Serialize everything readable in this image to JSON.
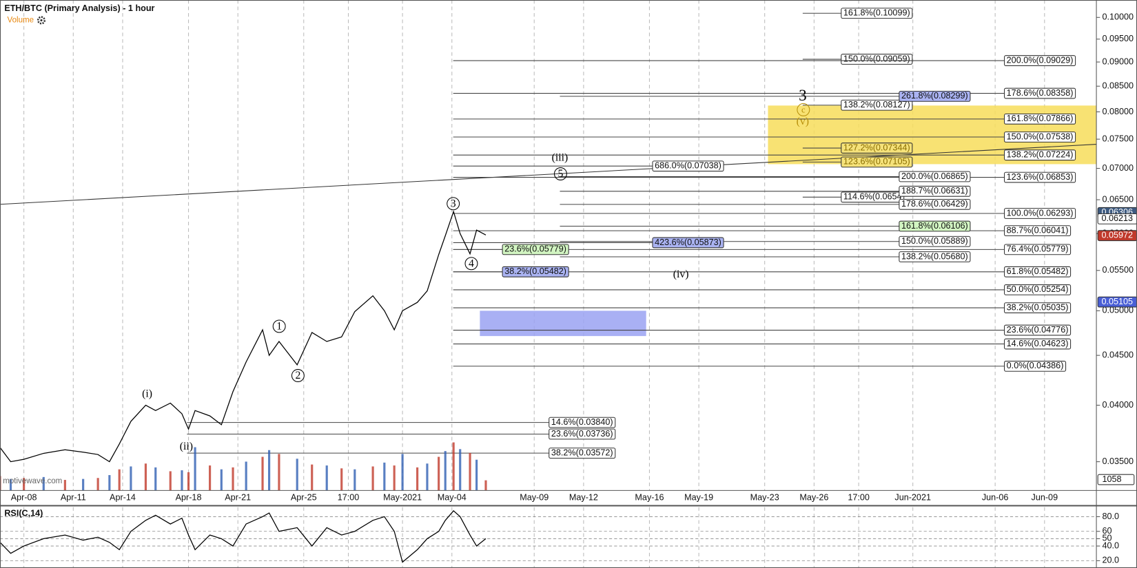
{
  "chart_data": [
    {
      "type": "line",
      "title": "ETH/BTC (Primary Analysis) - 1 hour",
      "indicator_label": "Volume",
      "watermark": "motivewave.com",
      "color": "#000000",
      "log_scale": true,
      "grid": true,
      "x": [
        96.55,
        97.2,
        98,
        99.2,
        100.5,
        101.6,
        102.5,
        103.2,
        103.8,
        104.5,
        105.4,
        106,
        106.9,
        107.6,
        108,
        108.4,
        109.3,
        110,
        110.7,
        111.5,
        112.5,
        112.9,
        113.5,
        114.6,
        115.5,
        116.4,
        117.3,
        118.1,
        119.2,
        119.9,
        120.5,
        121,
        121.9,
        122.5,
        123.2,
        123.6,
        124.1,
        124.5,
        125.1,
        125.5,
        126.06
      ],
      "values": [
        0.0362,
        0.035,
        0.0352,
        0.0357,
        0.036,
        0.0358,
        0.0356,
        0.035,
        0.0365,
        0.0385,
        0.04,
        0.0395,
        0.0402,
        0.0392,
        0.0378,
        0.0395,
        0.039,
        0.0382,
        0.0413,
        0.0443,
        0.0478,
        0.045,
        0.0465,
        0.044,
        0.0475,
        0.0465,
        0.047,
        0.0499,
        0.0518,
        0.05,
        0.0478,
        0.05,
        0.051,
        0.0524,
        0.0571,
        0.0597,
        0.0632,
        0.06,
        0.0572,
        0.0605,
        0.0598
      ],
      "xlim": [
        96.55,
        163.15
      ],
      "xticks": [
        {
          "value": 98,
          "label": "Apr-08"
        },
        {
          "value": 101,
          "label": "Apr-11"
        },
        {
          "value": 104,
          "label": "Apr-14"
        },
        {
          "value": 108,
          "label": "Apr-18"
        },
        {
          "value": 111,
          "label": "Apr-21"
        },
        {
          "value": 115,
          "label": "Apr-25"
        },
        {
          "value": 117.71,
          "label": "17:00"
        },
        {
          "value": 121,
          "label": "May-2021"
        },
        {
          "value": 124,
          "label": "May-04"
        },
        {
          "value": 129,
          "label": "May-09"
        },
        {
          "value": 132,
          "label": "May-12"
        },
        {
          "value": 136,
          "label": "May-16"
        },
        {
          "value": 139,
          "label": "May-19"
        },
        {
          "value": 143,
          "label": "May-23"
        },
        {
          "value": 146,
          "label": "May-26"
        },
        {
          "value": 148.71,
          "label": "17:00"
        },
        {
          "value": 152,
          "label": "Jun-2021"
        },
        {
          "value": 157,
          "label": "Jun-06"
        },
        {
          "value": 160,
          "label": "Jun-09"
        }
      ],
      "ylim": [
        0.0327,
        0.1042
      ],
      "yticks": [
        {
          "value": 0.035,
          "label": "0.03500"
        },
        {
          "value": 0.04,
          "label": "0.04000"
        },
        {
          "value": 0.045,
          "label": "0.04500"
        },
        {
          "value": 0.05,
          "label": "0.05000"
        },
        {
          "value": 0.055,
          "label": "0.05500"
        },
        {
          "value": 0.06,
          "label": "0.06000"
        },
        {
          "value": 0.065,
          "label": "0.06500"
        },
        {
          "value": 0.07,
          "label": "0.07000"
        },
        {
          "value": 0.075,
          "label": "0.07500"
        },
        {
          "value": 0.08,
          "label": "0.08000"
        },
        {
          "value": 0.085,
          "label": "0.08500"
        },
        {
          "value": 0.09,
          "label": "0.09000"
        },
        {
          "value": 0.095,
          "label": "0.09500"
        },
        {
          "value": 0.1,
          "label": "0.10000"
        }
      ],
      "price_markers": [
        {
          "label": "0.06306",
          "value": 0.06306,
          "color": "#3d5a80"
        },
        {
          "label": "0.06213",
          "value": 0.06213,
          "color": "#ffffff"
        },
        {
          "label": "0.05972",
          "value": 0.05972,
          "color": "#c0392b"
        },
        {
          "label": "0.05105",
          "value": 0.05105,
          "color": "#4a5fd6"
        }
      ],
      "zones": [
        {
          "from": 0.0707,
          "to": 0.0812,
          "x": [
            143.2,
            163.15
          ],
          "color": "#f7dd5a"
        },
        {
          "from": 0.0471,
          "to": 0.05,
          "x": [
            125.7,
            135.8
          ],
          "color": "#9aa2f2"
        }
      ],
      "trendline": {
        "x": [
          96.55,
          163.15
        ],
        "y": [
          0.0643,
          0.0741
        ]
      },
      "levels": [
        {
          "label": "161.8%(0.10099)",
          "value": 0.10099,
          "x": [
            145.31,
            147.65
          ],
          "box": "white"
        },
        {
          "label": "150.0%(0.09059)",
          "value": 0.09059,
          "x": [
            145.31,
            147.65
          ],
          "box": "white"
        },
        {
          "label": "138.2%(0.08127)",
          "value": 0.08127,
          "x": [
            145.31,
            147.65
          ],
          "box": "white"
        },
        {
          "label": "127.2%(0.07344)",
          "value": 0.07344,
          "x": [
            145.31,
            147.65
          ],
          "box": "yellow"
        },
        {
          "label": "123.6%(0.07105)",
          "value": 0.07105,
          "x": [
            145.31,
            147.65
          ],
          "box": "yellow"
        },
        {
          "label": "114.6%(0.0654",
          "value": 0.0654,
          "x": [
            145.31,
            147.65
          ],
          "box": "white"
        },
        {
          "label": "200.0%(0.09029)",
          "value": 0.09029,
          "x": [
            124.08,
            157.56
          ],
          "box": "white"
        },
        {
          "label": "178.6%(0.08358)",
          "value": 0.08358,
          "x": [
            124.08,
            157.56
          ],
          "box": "white"
        },
        {
          "label": "161.8%(0.07866)",
          "value": 0.07866,
          "x": [
            124.08,
            157.56
          ],
          "box": "white"
        },
        {
          "label": "150.0%(0.07538)",
          "value": 0.07538,
          "x": [
            124.08,
            157.56
          ],
          "box": "white"
        },
        {
          "label": "138.2%(0.07224)",
          "value": 0.07224,
          "x": [
            124.08,
            157.56
          ],
          "box": "white"
        },
        {
          "label": "123.6%(0.06853)",
          "value": 0.06853,
          "x": [
            124.08,
            157.56
          ],
          "box": "white"
        },
        {
          "label": "100.0%(0.06293)",
          "value": 0.06293,
          "x": [
            124.08,
            157.56
          ],
          "box": "white"
        },
        {
          "label": "88.7%(0.06041)",
          "value": 0.06041,
          "x": [
            124.08,
            157.56
          ],
          "box": "white"
        },
        {
          "label": "76.4%(0.05779)",
          "value": 0.05779,
          "x": [
            124.08,
            157.56
          ],
          "box": "white"
        },
        {
          "label": "61.8%(0.05482)",
          "value": 0.05482,
          "x": [
            124.08,
            157.56
          ],
          "box": "white"
        },
        {
          "label": "50.0%(0.05254)",
          "value": 0.05254,
          "x": [
            124.08,
            157.56
          ],
          "box": "white"
        },
        {
          "label": "38.2%(0.05035)",
          "value": 0.05035,
          "x": [
            124.08,
            157.56
          ],
          "box": "white"
        },
        {
          "label": "23.6%(0.04776)",
          "value": 0.04776,
          "x": [
            124.08,
            157.56
          ],
          "box": "white"
        },
        {
          "label": "14.6%(0.04623)",
          "value": 0.04623,
          "x": [
            124.08,
            157.56
          ],
          "box": "white"
        },
        {
          "label": "0.0%(0.04386)",
          "value": 0.04386,
          "x": [
            124.08,
            157.56
          ],
          "box": "white"
        },
        {
          "label": "261.8%(0.08299)",
          "value": 0.08299,
          "x": [
            130.56,
            151.17
          ],
          "box": "blue"
        },
        {
          "label": "200.0%(0.06865)",
          "value": 0.06865,
          "x": [
            130.56,
            151.17
          ],
          "box": "white"
        },
        {
          "label": "188.7%(0.06631)",
          "value": 0.06631,
          "x": [
            130.56,
            151.17
          ],
          "box": "white"
        },
        {
          "label": "178.6%(0.06429)",
          "value": 0.06429,
          "x": [
            130.56,
            151.17
          ],
          "box": "white"
        },
        {
          "label": "161.8%(0.06106)",
          "value": 0.06106,
          "x": [
            130.56,
            151.17
          ],
          "box": "green"
        },
        {
          "label": "150.0%(0.05889)",
          "value": 0.05889,
          "x": [
            130.56,
            151.17
          ],
          "box": "white"
        },
        {
          "label": "138.2%(0.05680)",
          "value": 0.0568,
          "x": [
            130.56,
            151.17
          ],
          "box": "white"
        },
        {
          "label": "686.0%(0.07038)",
          "value": 0.07038,
          "x": [
            124.08,
            136.19
          ],
          "box": "white"
        },
        {
          "label": "423.6%(0.05873)",
          "value": 0.05873,
          "x": [
            124.08,
            136.19
          ],
          "box": "blue"
        },
        {
          "label": "23.6%(0.05779)",
          "value": 0.05779,
          "x": [
            124.08,
            127.07
          ],
          "box": "green"
        },
        {
          "label": "38.2%(0.05482)",
          "value": 0.05482,
          "x": [
            124.08,
            127.07
          ],
          "box": "blue"
        },
        {
          "label": "14.6%(0.03840)",
          "value": 0.0384,
          "x": [
            107.91,
            129.9
          ],
          "box": "white"
        },
        {
          "label": "23.6%(0.03736)",
          "value": 0.03736,
          "x": [
            107.91,
            129.9
          ],
          "box": "white"
        },
        {
          "label": "38.2%(0.03572)",
          "value": 0.03572,
          "x": [
            107.91,
            129.9
          ],
          "box": "white"
        }
      ],
      "wave_labels": [
        {
          "label": "(i)",
          "x": 105.49,
          "y": 0.0411,
          "circled": false,
          "color": "#000000"
        },
        {
          "label": "(ii)",
          "x": 107.87,
          "y": 0.0363,
          "circled": false,
          "color": "#000000"
        },
        {
          "label": "1",
          "x": 113.51,
          "y": 0.0482,
          "circled": true,
          "color": "#000000"
        },
        {
          "label": "2",
          "x": 114.65,
          "y": 0.0429,
          "circled": true,
          "color": "#000000"
        },
        {
          "label": "3",
          "x": 124.08,
          "y": 0.0644,
          "circled": true,
          "color": "#000000"
        },
        {
          "label": "4",
          "x": 125.18,
          "y": 0.0559,
          "circled": true,
          "color": "#000000"
        },
        {
          "label": "5",
          "x": 130.6,
          "y": 0.0691,
          "circled": true,
          "color": "#000000"
        },
        {
          "label": "(iii)",
          "x": 130.56,
          "y": 0.0718,
          "circled": false,
          "color": "#000000"
        },
        {
          "label": "(iv)",
          "x": 137.91,
          "y": 0.0545,
          "circled": false,
          "color": "#000000"
        },
        {
          "label": "3",
          "x": 145.31,
          "y": 0.083,
          "circled": false,
          "color": "#000000"
        },
        {
          "label": "c",
          "x": 145.35,
          "y": 0.0804,
          "circled": true,
          "color": "#b8900b"
        },
        {
          "label": "(v)",
          "x": 145.31,
          "y": 0.0782,
          "circled": false,
          "color": "#b8900b"
        }
      ]
    },
    {
      "type": "bar",
      "color": "#c0392b",
      "x": [
        96.55,
        97.2,
        98,
        99.2,
        100.5,
        101.6,
        102.5,
        103.2,
        103.8,
        104.5,
        105.4,
        106,
        106.9,
        107.6,
        108,
        108.4,
        109.3,
        110,
        110.7,
        111.5,
        112.5,
        112.9,
        113.5,
        114.6,
        115.5,
        116.4,
        117.3,
        118.1,
        119.2,
        119.9,
        120.5,
        121,
        121.9,
        122.5,
        123.2,
        123.6,
        124.1,
        124.5,
        125.1,
        125.5,
        126.06
      ],
      "values": [
        1500,
        1200,
        1300,
        1400,
        1100,
        1200,
        1300,
        1600,
        2200,
        2500,
        2800,
        2400,
        2000,
        2100,
        1900,
        4500,
        2600,
        2200,
        2400,
        3000,
        3500,
        4200,
        3800,
        3300,
        2700,
        2600,
        2300,
        2200,
        2500,
        2900,
        2600,
        3800,
        2400,
        2800,
        3500,
        4100,
        5000,
        4300,
        3900,
        3200,
        1058
      ],
      "ylim": [
        0,
        51000
      ]
    },
    {
      "type": "line",
      "title": "RSI(C,14)",
      "color": "#000000",
      "x": [
        96.55,
        97.2,
        98,
        99.2,
        100.5,
        101.6,
        102.5,
        103.2,
        103.8,
        104.5,
        105.4,
        106,
        106.9,
        107.6,
        108,
        108.4,
        109.3,
        110,
        110.7,
        111.5,
        112.5,
        112.9,
        113.5,
        114.6,
        115.5,
        116.4,
        117.3,
        118.1,
        119.2,
        119.9,
        120.5,
        121,
        121.9,
        122.5,
        123.2,
        123.6,
        124.1,
        124.5,
        125.1,
        125.5,
        126.06
      ],
      "values": [
        45,
        30,
        40,
        50,
        55,
        48,
        52,
        45,
        35,
        60,
        75,
        82,
        70,
        78,
        55,
        35,
        55,
        50,
        40,
        70,
        80,
        85,
        60,
        65,
        40,
        65,
        55,
        60,
        75,
        80,
        60,
        18,
        35,
        50,
        60,
        75,
        88,
        80,
        55,
        40,
        50
      ],
      "ylim": [
        12,
        93
      ],
      "yticks": [
        {
          "value": 80,
          "label": "80.0"
        },
        60,
        50,
        {
          "value": 40,
          "label": "40.0"
        },
        {
          "value": 20,
          "label": "20.0"
        }
      ]
    }
  ]
}
